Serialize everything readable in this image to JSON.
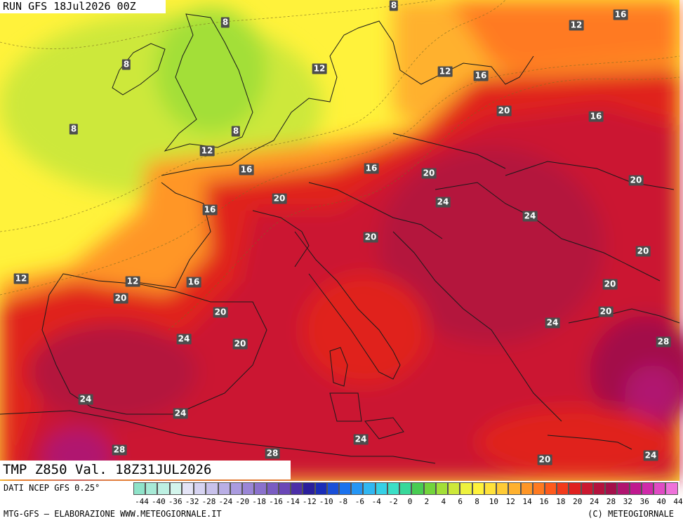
{
  "header": {
    "run_label": "RUN GFS 18Jul2026 00Z"
  },
  "footer_box": {
    "validity_label": "TMP Z850 Val. 18Z31JUL2026"
  },
  "legend": {
    "source": "DATI NCEP GFS 0.25°",
    "credit_left": "MTG-GFS — ELABORAZIONE WWW.METEOGIORNALE.IT",
    "credit_right": "(C) METEOGIORNALE",
    "tick_labels": [
      "-44",
      "-40",
      "-36",
      "-32",
      "-28",
      "-24",
      "-20",
      "-18",
      "-16",
      "-14",
      "-12",
      "-10",
      "-8",
      "-6",
      "-4",
      "-2",
      "0",
      "2",
      "4",
      "6",
      "8",
      "10",
      "12",
      "14",
      "16",
      "18",
      "20",
      "24",
      "28",
      "32",
      "36",
      "40",
      "44"
    ],
    "swatches": [
      "#8fe3c9",
      "#a7ead6",
      "#bdf0e2",
      "#d3f5ec",
      "#e4e4f6",
      "#d6d3f1",
      "#c8c1eb",
      "#b9aee5",
      "#aa9bdf",
      "#9a86d6",
      "#8a71cc",
      "#7a5cc2",
      "#6a47b7",
      "#4c2fa8",
      "#2a1f9c",
      "#1a2db8",
      "#1a4fd8",
      "#1b72ee",
      "#2596f5",
      "#31b7f2",
      "#36d0e6",
      "#3bdfc6",
      "#38d89a",
      "#48cc52",
      "#72d43b",
      "#a3df38",
      "#cde83a",
      "#eef23e",
      "#fff23b",
      "#ffe23a",
      "#ffcb35",
      "#ffb12e",
      "#ff9626",
      "#ff7a20",
      "#ff5a1c",
      "#f23a1c",
      "#e0201f",
      "#cb1830",
      "#b4123d",
      "#a3104a",
      "#b01470",
      "#c0188f",
      "#d02aaa",
      "#e04bc4",
      "#ee72da"
    ]
  },
  "isotherm_labels": [
    {
      "text": "8"
    },
    {
      "text": "16"
    },
    {
      "text": "12"
    },
    {
      "text": "8"
    },
    {
      "text": "8"
    },
    {
      "text": "12"
    },
    {
      "text": "12"
    },
    {
      "text": "16"
    },
    {
      "text": "8"
    },
    {
      "text": "8"
    },
    {
      "text": "20"
    },
    {
      "text": "16"
    },
    {
      "text": "12"
    },
    {
      "text": "16"
    },
    {
      "text": "16"
    },
    {
      "text": "20"
    },
    {
      "text": "20"
    },
    {
      "text": "20"
    },
    {
      "text": "16"
    },
    {
      "text": "24"
    },
    {
      "text": "24"
    },
    {
      "text": "20"
    },
    {
      "text": "20"
    },
    {
      "text": "12"
    },
    {
      "text": "12"
    },
    {
      "text": "16"
    },
    {
      "text": "20"
    },
    {
      "text": "20"
    },
    {
      "text": "20"
    },
    {
      "text": "20"
    },
    {
      "text": "24"
    },
    {
      "text": "24"
    },
    {
      "text": "28"
    },
    {
      "text": "20"
    },
    {
      "text": "24"
    },
    {
      "text": "24"
    },
    {
      "text": "28"
    },
    {
      "text": "28"
    },
    {
      "text": "24"
    },
    {
      "text": "20"
    },
    {
      "text": "24"
    }
  ],
  "colors": {
    "hot_core": "#b3123f",
    "warm": "#e0201f",
    "orange": "#ff7a20",
    "yellow": "#fff23b",
    "green": "#c9e84a",
    "purple": "#b0186e"
  }
}
